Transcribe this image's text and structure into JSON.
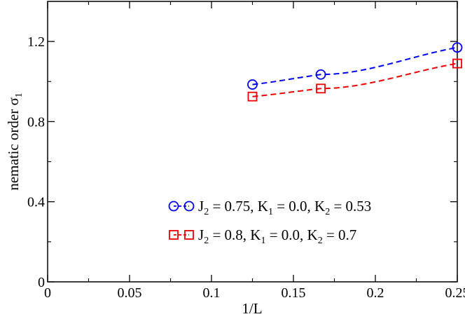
{
  "chart_data": {
    "type": "line",
    "title": "",
    "xlabel": "1/L",
    "ylabel_main": "nematic order σ",
    "ylabel_sub": "1",
    "xlim": [
      0,
      0.25
    ],
    "ylim": [
      0,
      1.4
    ],
    "x_ticks": [
      0,
      0.05,
      0.1,
      0.15,
      0.2,
      0.25
    ],
    "x_tick_labels": [
      "0",
      "0.05",
      "0.1",
      "0.15",
      "0.2",
      "0.25"
    ],
    "y_ticks": [
      0,
      0.4,
      0.8,
      1.2
    ],
    "y_tick_labels": [
      "0",
      "0.4",
      "0.8",
      "1.2"
    ],
    "grid": false,
    "legend_position": "lower-right",
    "series": [
      {
        "label_parts": [
          {
            "t": "J",
            "sub": false
          },
          {
            "t": "2",
            "sub": true
          },
          {
            "t": " = 0.75, K",
            "sub": false
          },
          {
            "t": "1",
            "sub": true
          },
          {
            "t": " = 0.0, K",
            "sub": false
          },
          {
            "t": "2",
            "sub": true
          },
          {
            "t": " = 0.53",
            "sub": false
          }
        ],
        "color": "#0000ee",
        "marker": "circle",
        "x": [
          0.125,
          0.1667,
          0.25
        ],
        "y": [
          0.985,
          1.035,
          1.17
        ]
      },
      {
        "label_parts": [
          {
            "t": "J",
            "sub": false
          },
          {
            "t": "2",
            "sub": true
          },
          {
            "t": " = 0.8, K",
            "sub": false
          },
          {
            "t": "1",
            "sub": true
          },
          {
            "t": " = 0.0, K",
            "sub": false
          },
          {
            "t": "2",
            "sub": true
          },
          {
            "t": " = 0.7",
            "sub": false
          }
        ],
        "color": "#ee0000",
        "marker": "square",
        "x": [
          0.125,
          0.1667,
          0.25
        ],
        "y": [
          0.925,
          0.965,
          1.09
        ]
      }
    ]
  }
}
